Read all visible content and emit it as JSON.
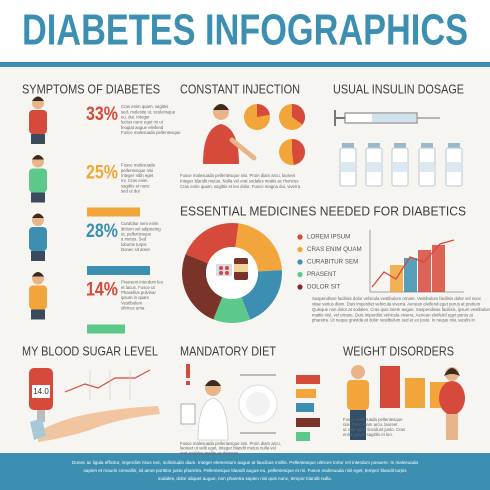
{
  "header": {
    "title": "DIABETES INFOGRAPHICS"
  },
  "symptoms": {
    "title": "SYMPTOMS OF DIABETES",
    "items": [
      {
        "percent": "33%",
        "lines": [
          "Cras enim quam, sagittis",
          "sed, molestie ut, scelerisque",
          "eu, dui. Integer",
          "luctus nunc eget mi ut",
          "feugiat augue eleifend",
          "Fusce malesuada pellentesque"
        ]
      },
      {
        "percent": "25%",
        "lines": [
          "Fusce malesuada",
          "pellentesque nisi",
          "Integer nibh eget",
          "mi. Cras enim",
          "sagittis et nunc",
          "sed ut dui"
        ]
      },
      {
        "percent": "28%",
        "lines": [
          "Curabitur sem enim",
          "dictum vel adipiscing",
          "ut, pellentesque",
          "a metus. Sed",
          "lobortis turpis",
          "Donec sit amet"
        ]
      },
      {
        "percent": "14%",
        "lines": [
          "Praesent interdum leo",
          "et lacus. Fusce ut",
          "Phasellus pulvinar",
          "ipsum in quam",
          "Vestibulum",
          "ultrices urna"
        ]
      }
    ]
  },
  "injection": {
    "title": "CONSTANT INJECTION",
    "lines": [
      "Fusce malesuada pellentesque nisi. Proin diam arcu, laoreet",
      "Integer blandit metus. Nulla vel erat sodales mattis ac rhoncus",
      "Cras enim quam, sagittis et leo dolor. Fusce magna dui, viverra"
    ]
  },
  "dosage": {
    "title": "USUAL INSULIN DOSAGE"
  },
  "medicines": {
    "title": "ESSENTIAL MEDICINES NEEDED FOR DIABETICS",
    "chart": {
      "type": "donut",
      "categories": [
        "LOREM IPSUM",
        "CRAS ENIM QUAM",
        "CURABITUR SEM",
        "PRASENT",
        "DOLOR SIT"
      ],
      "values": [
        21,
        22,
        20,
        12,
        25
      ],
      "colors": [
        "#d64a3b",
        "#f2a53a",
        "#3c8fb1",
        "#5cc98a",
        "#7a3328"
      ]
    },
    "lines": [
      "Suspendisse facilisis dolor vehicula vestibulum ornare. Vestibulum facilisis dolor vel nunc",
      "vitae varius diam. Duis imperdiet vehicula viverra. Aenean eleifend eget purus at pretium",
      "Quisque non dolor at sodales. Cras quis lorem augue. Suspendisse facilisis, ipsum vestibulum",
      "mattis nisl, vel ornare. Duis imperdiet vehicula viverra. Aenean eleifend eget purus at",
      "pharetra. Ut neque gravida at dolor vestibulum sed et ex justo. In neque nisi, iaculis in"
    ]
  },
  "blood_sugar": {
    "title": "MY BLOOD SUGAR LEVEL",
    "reading": "14.0"
  },
  "diet": {
    "title": "MANDATORY DIET",
    "lines": [
      "Fusce malesuada pellentesque nisi. Proin diam arcu,",
      "laoreet ut velit eget. Integer blandit metus nulla vel",
      "erat sodales mattis ac rhoncus."
    ]
  },
  "weight": {
    "title": "WEIGHT DISORDERS",
    "lines": [
      "Fusce malesuada pellentesque",
      "nisi. Proin diam arcu, laoreet",
      "ut velit eget, tincidunt justo. Cras",
      "enim quam, sagittis et leo."
    ]
  },
  "footer": {
    "lines": [
      "Donec ac ligula efficitur, imperdiet risus nec, sollicitudin diam. Integer elementum augue at faucibus mollis. Pellentesque ultrices tortor vel interdum posuere. In malesuada",
      "sapien et mauris convallis, sit amet porttitor justo pharetra. Pellentesque blandit augue eu, pellentesque et mi. Fusce malesuada nisl eget, tempor blandit turpis",
      "sodales, dolor aliquet augue, non pharetra sapien nisi quis nunc, tempor blandit nulla."
    ]
  }
}
